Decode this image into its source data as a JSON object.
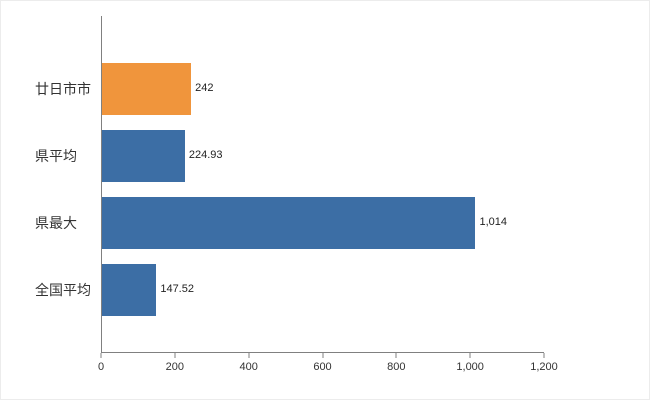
{
  "chart_data": {
    "type": "bar",
    "orientation": "horizontal",
    "title": "",
    "xlabel": "",
    "ylabel": "",
    "grid": false,
    "legend": "none",
    "categories": [
      "廿日市市",
      "県平均",
      "県最大",
      "全国平均"
    ],
    "values": [
      242,
      224.93,
      1014,
      147.52
    ],
    "value_labels": [
      "242",
      "224.93",
      "1,014",
      "147.52"
    ],
    "bar_colors": [
      "#F0953C",
      "#3C6EA5",
      "#3C6EA5",
      "#3C6EA5"
    ],
    "xlim": [
      0,
      1200
    ],
    "x_ticks": [
      0,
      200,
      400,
      600,
      800,
      1000,
      1200
    ],
    "x_tick_labels": [
      "0",
      "200",
      "400",
      "600",
      "800",
      "1,000",
      "1,200"
    ],
    "axis_color": "#808080",
    "label_color": "#333333",
    "value_label_color": "#222222",
    "background_color": "#ffffff"
  }
}
